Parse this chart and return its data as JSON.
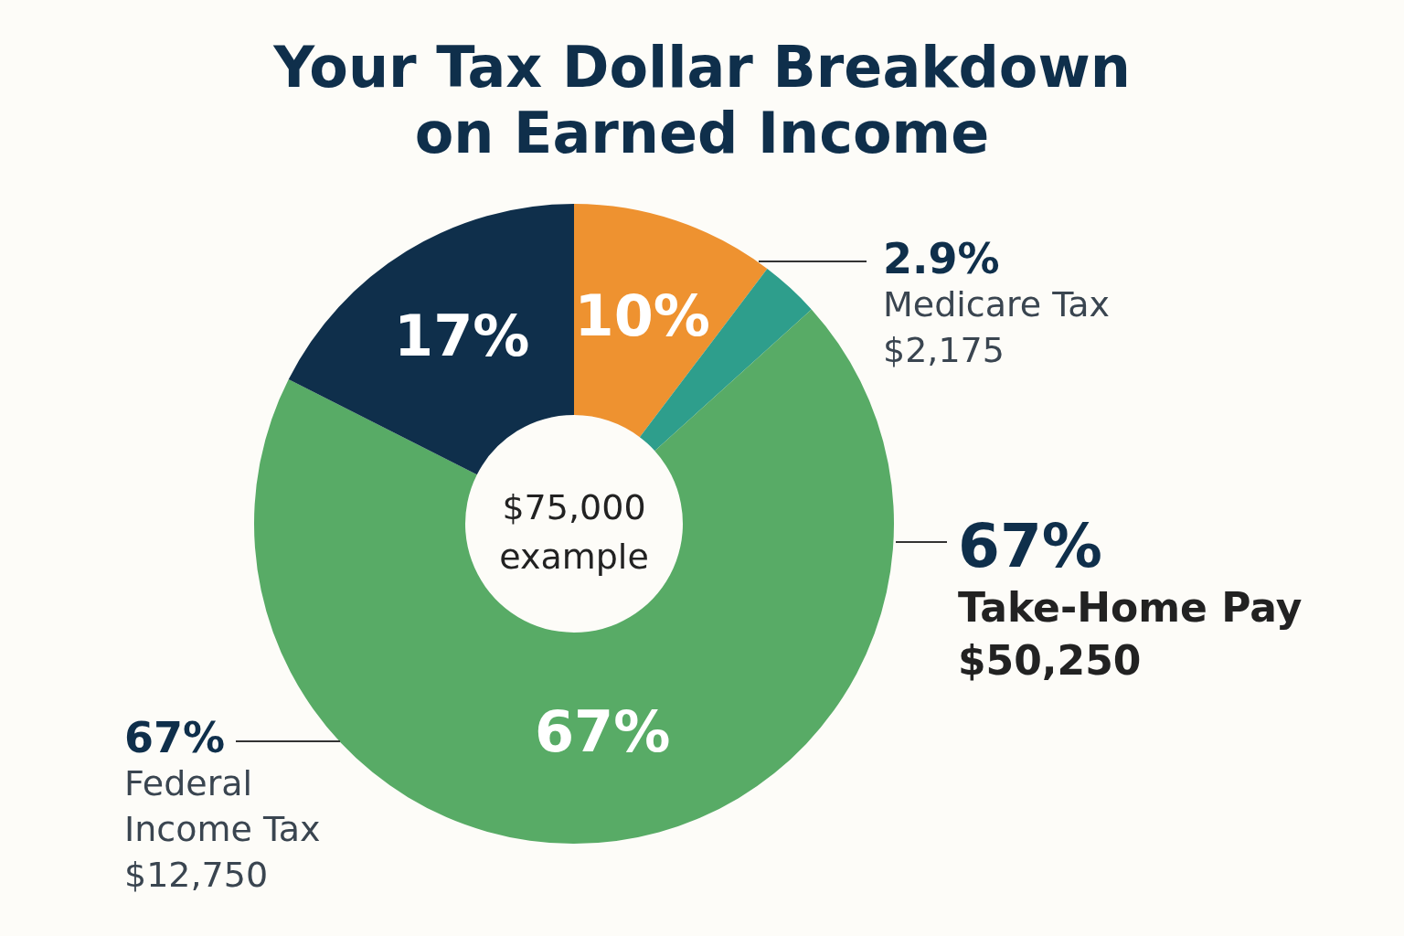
{
  "chart_data": {
    "type": "donut",
    "title": "Your Tax Dollar Breakdown\non Earned Income",
    "categories": [
      null,
      null,
      null,
      null
    ],
    "values": [
      10,
      2.9,
      67,
      17
    ],
    "colors": [
      "#ee9230",
      "#2e9e8c",
      "#58ab66",
      "#0f2f4b"
    ],
    "value_labels": [
      "10%",
      null,
      "67%",
      "17%"
    ],
    "legend": false,
    "annotations": [
      "$75,000\nexample",
      "2.9%\nMedicare Tax\n$2,175",
      "67%\nTake-Home Pay\n$50,250",
      "67%\nFederal\nIncome Tax\n$12,750"
    ]
  }
}
